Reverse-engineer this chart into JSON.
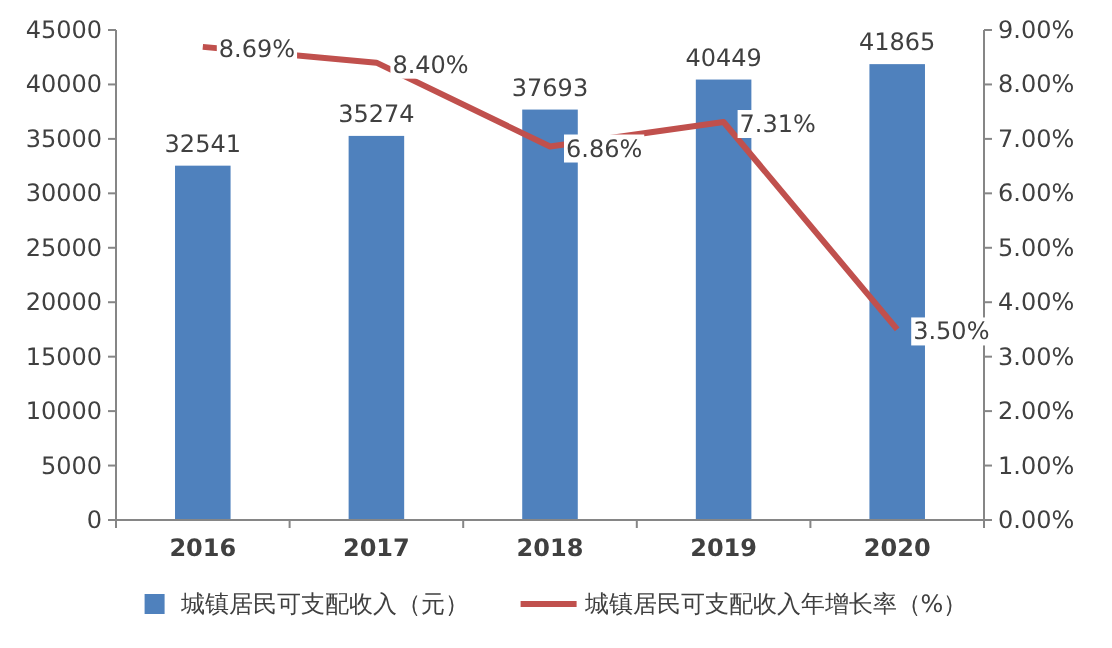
{
  "chart_data": {
    "type": "bar",
    "categories": [
      "2016",
      "2017",
      "2018",
      "2019",
      "2020"
    ],
    "series": [
      {
        "name": "城镇居民可支配收入（元）",
        "color": "#4f81bd",
        "values": [
          32541,
          35274,
          37693,
          40449,
          41865
        ],
        "value_labels": [
          "32541",
          "35274",
          "37693",
          "40449",
          "41865"
        ]
      },
      {
        "name": "城镇居民可支配收入年增长率（%）",
        "type": "line",
        "axis": "y2",
        "color": "#c0504d",
        "values": [
          8.69,
          8.4,
          6.86,
          7.31,
          3.5
        ],
        "value_labels": [
          "8.69%",
          "8.40%",
          "6.86%",
          "7.31%",
          "3.50%"
        ]
      }
    ],
    "ylim": [
      0,
      45000
    ],
    "yticks": [
      0,
      5000,
      10000,
      15000,
      20000,
      25000,
      30000,
      35000,
      40000,
      45000
    ],
    "y2lim": [
      0,
      9
    ],
    "y2ticks": [
      {
        "value": 0,
        "label": "0.00%"
      },
      {
        "value": 1,
        "label": "1.00%"
      },
      {
        "value": 2,
        "label": "2.00%"
      },
      {
        "value": 3,
        "label": "3.00%"
      },
      {
        "value": 4,
        "label": "4.00%"
      },
      {
        "value": 5,
        "label": "5.00%"
      },
      {
        "value": 6,
        "label": "6.00%"
      },
      {
        "value": 7,
        "label": "7.00%"
      },
      {
        "value": 8,
        "label": "8.00%"
      },
      {
        "value": 9,
        "label": "9.00%"
      }
    ],
    "legend": "bottom",
    "grid": false
  }
}
